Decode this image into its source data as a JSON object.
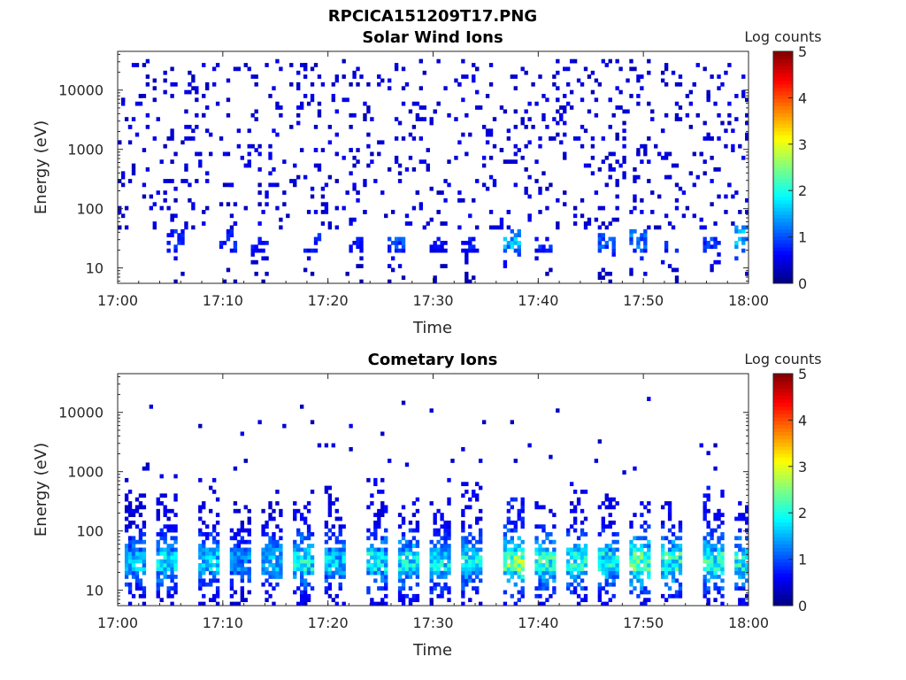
{
  "figure_title": "RPCICA151209T17.PNG",
  "colorbar": {
    "label": "Log counts",
    "range": [
      0,
      5
    ],
    "ticks": [
      "0",
      "1",
      "2",
      "3",
      "4",
      "5"
    ],
    "colormap": "jet"
  },
  "chart_data": [
    {
      "type": "heatmap",
      "title": "Solar Wind Ions",
      "xlabel": "Time",
      "ylabel": "Energy (eV)",
      "x_ticks": [
        "17:00",
        "17:10",
        "17:20",
        "17:30",
        "17:40",
        "17:50",
        "18:00"
      ],
      "x_range": [
        "17:00",
        "18:00"
      ],
      "y_ticks": [
        "10",
        "100",
        "1000",
        "10000"
      ],
      "y_scale": "log",
      "y_range": [
        5.5,
        45000
      ],
      "z_range": [
        0,
        5
      ],
      "grid": false,
      "description_of_values": "sparse pixels, mostly log counts near 0-1; denser band at 10-50 eV",
      "bursts": [
        {
          "t": "17:05",
          "emax": 40,
          "z": 1.0
        },
        {
          "t": "17:10",
          "emax": 40,
          "z": 1.0
        },
        {
          "t": "17:13",
          "emax": 30,
          "z": 0.9
        },
        {
          "t": "17:18",
          "emax": 35,
          "z": 1.0
        },
        {
          "t": "17:22",
          "emax": 30,
          "z": 0.8
        },
        {
          "t": "17:26",
          "emax": 30,
          "z": 1.2
        },
        {
          "t": "17:30",
          "emax": 30,
          "z": 0.8
        },
        {
          "t": "17:33",
          "emax": 30,
          "z": 0.9
        },
        {
          "t": "17:37",
          "emax": 40,
          "z": 1.8
        },
        {
          "t": "17:40",
          "emax": 30,
          "z": 1.0
        },
        {
          "t": "17:46",
          "emax": 35,
          "z": 1.2
        },
        {
          "t": "17:49",
          "emax": 40,
          "z": 1.4
        },
        {
          "t": "17:52",
          "emax": 30,
          "z": 1.1
        },
        {
          "t": "17:56",
          "emax": 30,
          "z": 1.1
        },
        {
          "t": "17:59",
          "emax": 50,
          "z": 1.8
        }
      ]
    },
    {
      "type": "heatmap",
      "title": "Cometary Ions",
      "xlabel": "Time",
      "ylabel": "Energy (eV)",
      "x_ticks": [
        "17:00",
        "17:10",
        "17:20",
        "17:30",
        "17:40",
        "17:50",
        "18:00"
      ],
      "x_range": [
        "17:00",
        "18:00"
      ],
      "y_ticks": [
        "10",
        "100",
        "1000",
        "10000"
      ],
      "y_scale": "log",
      "y_range": [
        5.5,
        45000
      ],
      "z_range": [
        0,
        5
      ],
      "grid": false,
      "description_of_values": "periodic bursts (~3-4 min) with peak log counts 2-3 at 15-40 eV, tails up to ~800 eV",
      "bursts": [
        {
          "t": "17:01",
          "emax": 700,
          "z": 1.9
        },
        {
          "t": "17:04",
          "emax": 800,
          "z": 2.1
        },
        {
          "t": "17:08",
          "emax": 700,
          "z": 2.0
        },
        {
          "t": "17:11",
          "emax": 300,
          "z": 1.6
        },
        {
          "t": "17:14",
          "emax": 500,
          "z": 2.0
        },
        {
          "t": "17:17",
          "emax": 500,
          "z": 2.3
        },
        {
          "t": "17:20",
          "emax": 500,
          "z": 2.0
        },
        {
          "t": "17:24",
          "emax": 700,
          "z": 2.2
        },
        {
          "t": "17:27",
          "emax": 350,
          "z": 2.3
        },
        {
          "t": "17:30",
          "emax": 700,
          "z": 2.2
        },
        {
          "t": "17:33",
          "emax": 800,
          "z": 2.3
        },
        {
          "t": "17:37",
          "emax": 400,
          "z": 3.0
        },
        {
          "t": "17:40",
          "emax": 350,
          "z": 2.5
        },
        {
          "t": "17:43",
          "emax": 600,
          "z": 2.3
        },
        {
          "t": "17:46",
          "emax": 400,
          "z": 2.3
        },
        {
          "t": "17:49",
          "emax": 300,
          "z": 2.7
        },
        {
          "t": "17:52",
          "emax": 300,
          "z": 2.5
        },
        {
          "t": "17:56",
          "emax": 500,
          "z": 2.5
        },
        {
          "t": "17:59",
          "emax": 300,
          "z": 2.4
        }
      ]
    }
  ]
}
